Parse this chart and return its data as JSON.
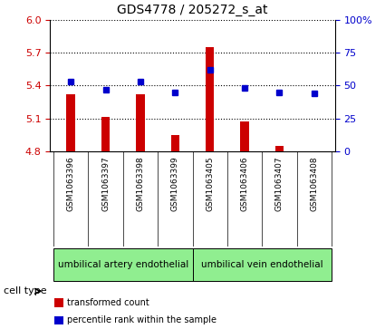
{
  "title": "GDS4778 / 205272_s_at",
  "samples": [
    "GSM1063396",
    "GSM1063397",
    "GSM1063398",
    "GSM1063399",
    "GSM1063405",
    "GSM1063406",
    "GSM1063407",
    "GSM1063408"
  ],
  "transformed_count": [
    5.32,
    5.11,
    5.32,
    4.95,
    5.75,
    5.07,
    4.85,
    4.8
  ],
  "percentile_rank": [
    53,
    47,
    53,
    45,
    62,
    48,
    45,
    44
  ],
  "ylim_left": [
    4.8,
    6.0
  ],
  "yticks_left": [
    4.8,
    5.1,
    5.4,
    5.7,
    6.0
  ],
  "ylim_right": [
    0,
    100
  ],
  "yticks_right": [
    0,
    25,
    50,
    75,
    100
  ],
  "yticklabels_right": [
    "0",
    "25",
    "50",
    "75",
    "100%"
  ],
  "bar_color": "#cc0000",
  "dot_color": "#0000cc",
  "bar_width": 0.25,
  "cell_type_groups": [
    {
      "label": "umbilical artery endothelial",
      "start": 0,
      "end": 3,
      "color": "#90ee90"
    },
    {
      "label": "umbilical vein endothelial",
      "start": 4,
      "end": 7,
      "color": "#90ee90"
    }
  ],
  "cell_type_label": "cell type",
  "legend_item1_label": "transformed count",
  "legend_item1_color": "#cc0000",
  "legend_item2_label": "percentile rank within the sample",
  "legend_item2_color": "#0000cc",
  "grid_linestyle": ":",
  "grid_linewidth": 0.8,
  "xticklabel_bg": "#d3d3d3",
  "background_color": "#ffffff",
  "title_fontsize": 10,
  "tick_fontsize": 8,
  "sample_fontsize": 6.5,
  "cell_type_fontsize": 7.5,
  "legend_fontsize": 7,
  "cell_type_label_fontsize": 8
}
